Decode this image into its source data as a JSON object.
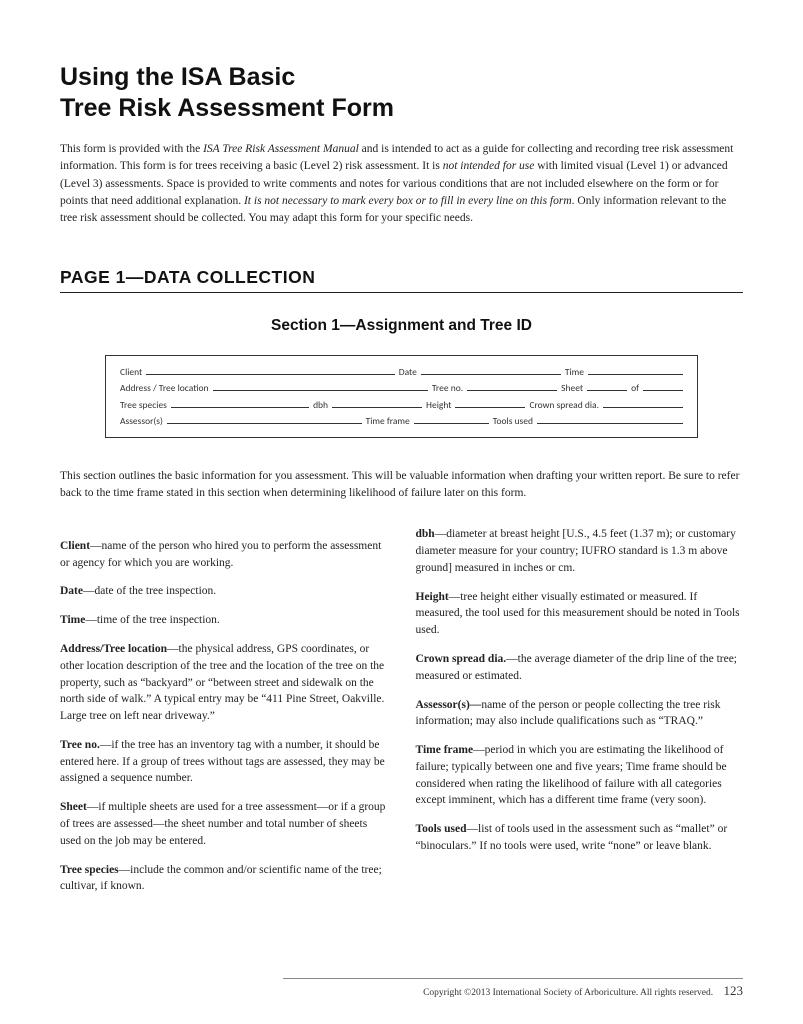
{
  "title_line1": "Using the ISA Basic",
  "title_line2": "Tree Risk Assessment Form",
  "intro_html": "This form is provided with the <em>ISA Tree Risk Assessment Manual</em> and is intended to act as a guide for collecting and recording tree risk assessment information. This form is for trees receiving a basic (Level 2) risk assessment. It is <em>not intended for use</em> with limited visual (Level 1) or advanced (Level 3) assessments. Space is provided to write comments and notes for various conditions that are not included elsewhere on the form or for points that need additional explanation. <em>It is not necessary to mark every box or to fill in every line on this form</em>. Only information relevant to the tree risk assessment should be collected. You may adapt this form for your specific needs.",
  "heading_page": "PAGE 1—DATA COLLECTION",
  "heading_section": "Section 1—Assignment and Tree ID",
  "form_labels": {
    "client": "Client",
    "date": "Date",
    "time": "Time",
    "address": "Address / Tree location",
    "tree_no": "Tree no.",
    "sheet": "Sheet",
    "of": "of",
    "species": "Tree species",
    "dbh": "dbh",
    "height": "Height",
    "crown": "Crown spread dia.",
    "assessor": "Assessor(s)",
    "timeframe": "Time frame",
    "tools": "Tools used"
  },
  "section_intro": "This section outlines the basic information for you assessment. This will be valuable information when drafting your written report. Be sure to refer back to the time frame stated in this section when determining likelihood of failure later on this form.",
  "definitions": [
    {
      "term": "Client",
      "text": "—name of the person who hired you to perform the assessment or agency for which you are working."
    },
    {
      "term": "Date",
      "text": "—date of the tree inspection."
    },
    {
      "term": "Time",
      "text": "—time of the tree inspection."
    },
    {
      "term": "Address/Tree location",
      "text": "—the physical address, GPS coordinates, or other location description of the tree and the location of the tree on the property, such as “backyard” or “between street and sidewalk on the north side of walk.” A typical entry may be “411 Pine Street, Oakville. Large tree on left near driveway.”"
    },
    {
      "term": "Tree no.",
      "text": "—if the tree has an inventory tag with a number, it should be entered here. If a group of trees without tags are assessed, they may be assigned a sequence number."
    },
    {
      "term": "Sheet",
      "text": "—if multiple sheets are used for a tree assessment—or if a group of trees are assessed—the sheet number and total number of sheets used on the job may be entered."
    },
    {
      "term": "Tree species",
      "text": "—include the common and/or scientific name of the tree; cultivar, if known."
    },
    {
      "term": "dbh",
      "text": "—diameter at breast height [U.S., 4.5 feet (1.37 m); or customary diameter measure for your country; IUFRO standard is 1.3 m above ground] measured in inches or cm."
    },
    {
      "term": "Height",
      "text": "—tree height either visually estimated or measured. If measured, the tool used for this measurement should be noted in Tools used."
    },
    {
      "term": "Crown spread dia.",
      "text": "—the average diameter of the drip line of the tree; measured or estimated."
    },
    {
      "term": "Assessor(s)—",
      "text": "name of the person or people collecting the tree risk information; may also include qualifications such as “TRAQ.”"
    },
    {
      "term": "Time frame",
      "text": "—period in which you are estimating the likelihood of failure; typically between one and five years; Time frame should be considered when rating the likelihood of failure with all categories except imminent, which has a different time frame (very soon)."
    },
    {
      "term": "Tools used",
      "text": "—list of tools used in the assessment such as “mallet” or “binoculars.” If no tools were used, write “none” or leave blank."
    }
  ],
  "footer_copyright": "Copyright ©2013 International Society of Arboriculture. All rights reserved.",
  "footer_page": "123",
  "colors": {
    "text": "#222222",
    "border": "#333333",
    "background": "#ffffff"
  },
  "fonts": {
    "heading": "Gill Sans",
    "body": "Georgia",
    "form": "Calibri"
  }
}
